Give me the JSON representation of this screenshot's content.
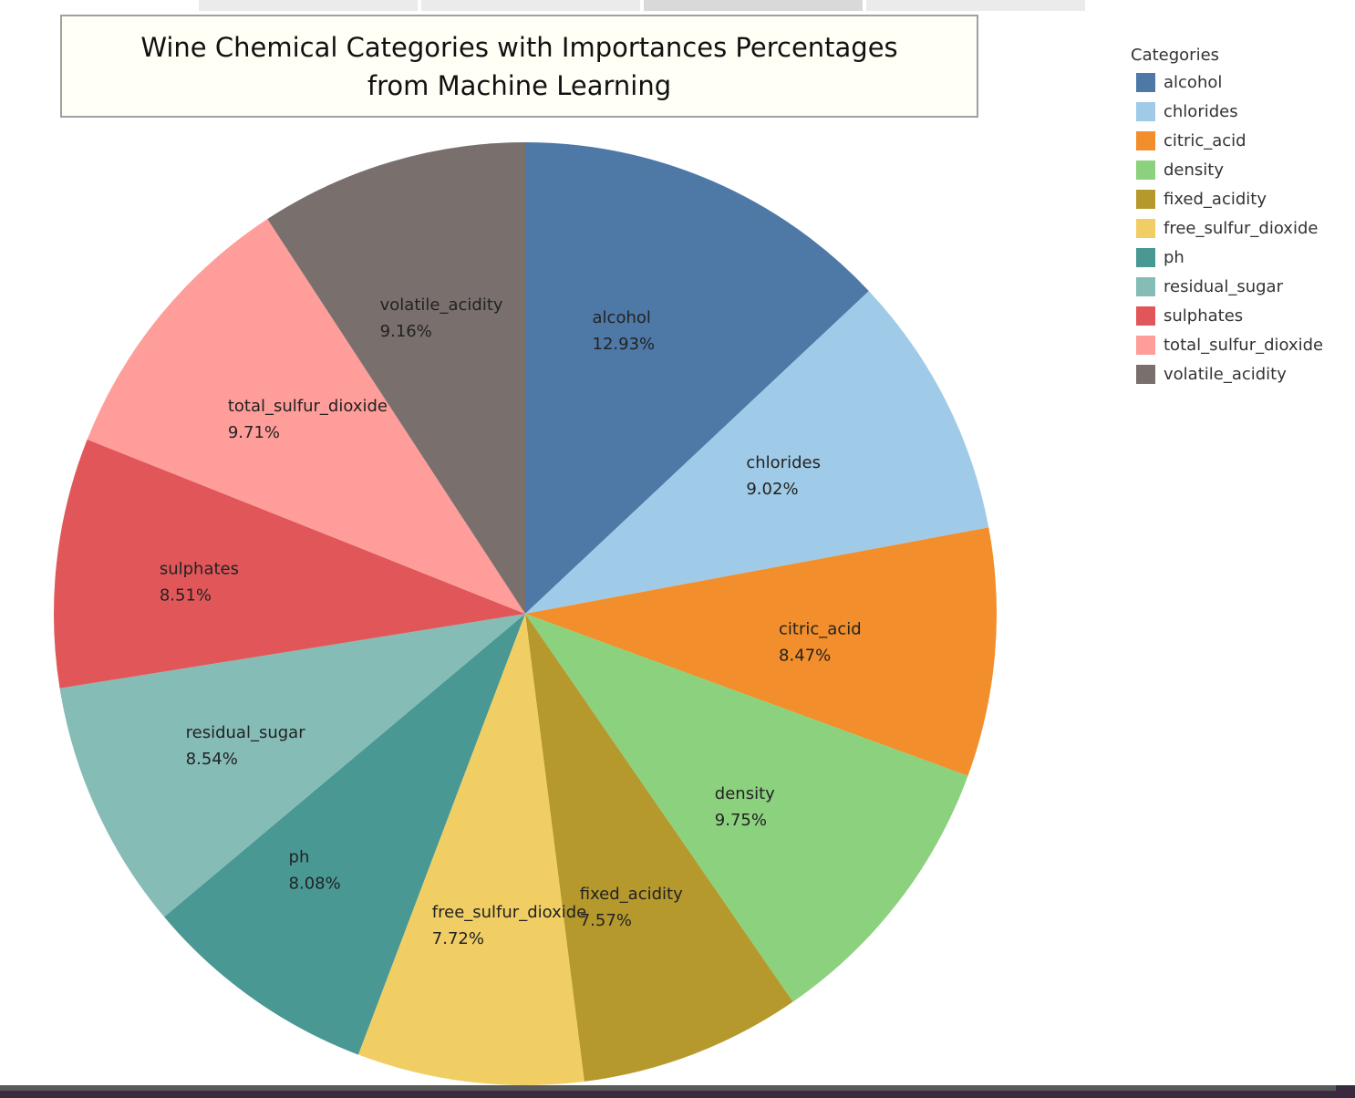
{
  "chart_data": {
    "type": "pie",
    "title": "Wine Chemical Categories with Importances Percentages\nfrom Machine Learning",
    "legend_title": "Categories",
    "legend_position": "right",
    "start_angle_deg": 0,
    "direction": "clockwise",
    "slices": [
      {
        "label": "alcohol",
        "value": 12.93,
        "value_label": "12.93%",
        "color": "#4e79a7"
      },
      {
        "label": "chlorides",
        "value": 9.02,
        "value_label": "9.02%",
        "color": "#a0cbe8"
      },
      {
        "label": "citric_acid",
        "value": 8.47,
        "value_label": "8.47%",
        "color": "#f28e2b"
      },
      {
        "label": "density",
        "value": 9.75,
        "value_label": "9.75%",
        "color": "#8cd17d"
      },
      {
        "label": "fixed_acidity",
        "value": 7.57,
        "value_label": "7.57%",
        "color": "#b6992d"
      },
      {
        "label": "free_sulfur_dioxide",
        "value": 7.72,
        "value_label": "7.72%",
        "color": "#f1ce63"
      },
      {
        "label": "ph",
        "value": 8.08,
        "value_label": "8.08%",
        "color": "#499894"
      },
      {
        "label": "residual_sugar",
        "value": 8.54,
        "value_label": "8.54%",
        "color": "#86bcb6"
      },
      {
        "label": "sulphates",
        "value": 8.51,
        "value_label": "8.51%",
        "color": "#e15759"
      },
      {
        "label": "total_sulfur_dioxide",
        "value": 9.71,
        "value_label": "9.71%",
        "color": "#ff9d9a"
      },
      {
        "label": "volatile_acidity",
        "value": 9.16,
        "value_label": "9.16%",
        "color": "#79706e"
      }
    ]
  }
}
